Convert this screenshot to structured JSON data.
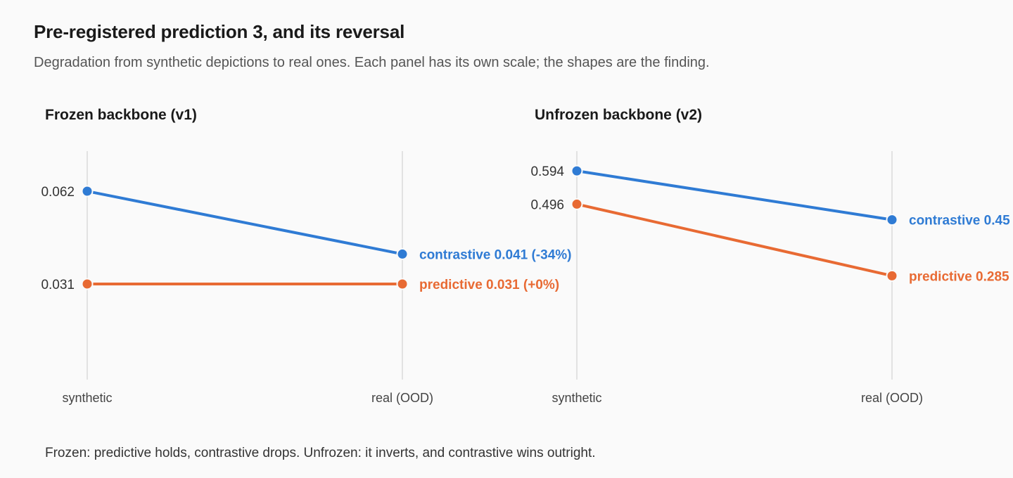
{
  "title": "Pre-registered prediction 3, and its reversal",
  "subtitle": "Degradation from synthetic depictions to real ones. Each panel has its own scale; the shapes are the finding.",
  "footnote": "Frozen: predictive holds, contrastive drops. Unfrozen: it inverts, and contrastive wins outright.",
  "colors": {
    "contrastive": "#2f7bd4",
    "predictive": "#e86a33",
    "axis": "#e2e2e2"
  },
  "chart_data": [
    {
      "type": "line",
      "title": "Frozen backbone (v1)",
      "x": [
        "synthetic",
        "real (OOD)"
      ],
      "ylim": [
        0.0,
        0.07
      ],
      "grid": false,
      "legend": "inline-right",
      "series": [
        {
          "name": "contrastive",
          "values": [
            0.062,
            0.041
          ],
          "start_label": "0.062",
          "end_label": "contrastive 0.041 (-34%)"
        },
        {
          "name": "predictive",
          "values": [
            0.031,
            0.031
          ],
          "start_label": "0.031",
          "end_label": "predictive 0.031 (+0%)"
        }
      ]
    },
    {
      "type": "line",
      "title": "Unfrozen backbone (v2)",
      "x": [
        "synthetic",
        "real (OOD)"
      ],
      "ylim": [
        0.0,
        0.65
      ],
      "grid": false,
      "legend": "inline-right",
      "series": [
        {
          "name": "contrastive",
          "values": [
            0.594,
            0.45
          ],
          "start_label": "0.594",
          "end_label": "contrastive 0.45"
        },
        {
          "name": "predictive",
          "values": [
            0.496,
            0.285
          ],
          "start_label": "0.496",
          "end_label": "predictive 0.285"
        }
      ]
    }
  ]
}
